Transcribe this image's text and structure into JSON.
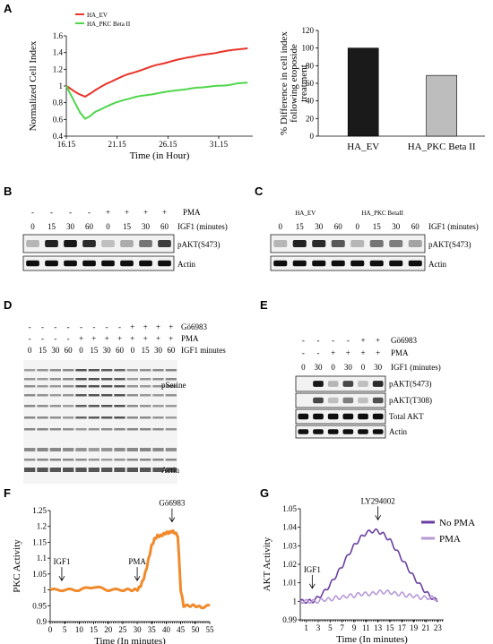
{
  "panel_letters": [
    "A",
    "B",
    "C",
    "D",
    "E",
    "F",
    "G"
  ],
  "chart_data": [
    {
      "type": "line",
      "panel": "A-left",
      "xlabel": "Time (in Hour)",
      "ylabel": "Normalized Cell Index",
      "xticks": [
        "16.15",
        "21.15",
        "26.15",
        "31.15"
      ],
      "yticks": [
        "0.4",
        "0.6",
        "0.8",
        "1",
        "1.2",
        "1.4",
        "1.6"
      ],
      "xlim": [
        16.15,
        34.5
      ],
      "ylim": [
        0.4,
        1.6
      ],
      "series": [
        {
          "name": "HA_EV",
          "color": "#e8342a",
          "x": [
            16.15,
            17,
            17.5,
            18,
            18.5,
            19,
            20,
            21,
            22,
            23,
            24,
            25,
            26,
            27,
            28,
            29,
            30,
            31,
            32,
            33,
            34
          ],
          "y": [
            1.0,
            0.93,
            0.9,
            0.87,
            0.91,
            0.95,
            1.02,
            1.08,
            1.13,
            1.17,
            1.21,
            1.25,
            1.28,
            1.31,
            1.34,
            1.36,
            1.38,
            1.4,
            1.42,
            1.44,
            1.45
          ]
        },
        {
          "name": "HA_PKC Beta II",
          "color": "#4fd64a",
          "x": [
            16.15,
            17,
            17.5,
            18,
            18.5,
            19,
            20,
            21,
            22,
            23,
            24,
            25,
            26,
            27,
            28,
            29,
            30,
            31,
            32,
            33,
            34
          ],
          "y": [
            1.0,
            0.8,
            0.68,
            0.61,
            0.64,
            0.69,
            0.75,
            0.8,
            0.84,
            0.87,
            0.89,
            0.91,
            0.93,
            0.95,
            0.96,
            0.98,
            0.99,
            1.0,
            1.01,
            1.03,
            1.04
          ]
        }
      ]
    },
    {
      "type": "bar",
      "panel": "A-right",
      "ylabel": "% Difference in cell index following etoposide treatment",
      "ylabel_lines": [
        "% Difference in cell index",
        "following etoposide",
        "treatment"
      ],
      "categories": [
        "HA_EV",
        "HA_PKC Beta II"
      ],
      "values": [
        100,
        69
      ],
      "colors": [
        "#1a1a1a",
        "#bdbdbd"
      ],
      "yticks": [
        "0",
        "20",
        "40",
        "60",
        "80",
        "100",
        "120"
      ],
      "ylim": [
        0,
        120
      ]
    },
    {
      "type": "line",
      "panel": "F",
      "xlabel": "Time (In minutes)",
      "ylabel": "PKC Activity",
      "xticks": [
        "0",
        "5",
        "10",
        "15",
        "20",
        "25",
        "30",
        "35",
        "40",
        "45",
        "50",
        "55"
      ],
      "yticks": [
        "0.9",
        "0.95",
        "1",
        "1.05",
        "1.1",
        "1.15",
        "1.2",
        "1.25"
      ],
      "xlim": [
        0,
        55
      ],
      "ylim": [
        0.9,
        1.25
      ],
      "series": [
        {
          "color": "#f08a2c",
          "x": [
            0,
            5,
            10,
            15,
            20,
            25,
            28,
            30,
            31,
            32,
            33,
            34,
            35,
            36,
            37,
            38,
            39,
            40,
            41,
            42,
            43,
            44,
            45,
            46,
            48,
            50,
            52,
            55
          ],
          "y": [
            1.0,
            1.0,
            1.0,
            1.01,
            1.0,
            1.0,
            1.0,
            1.0,
            1.01,
            1.03,
            1.06,
            1.1,
            1.14,
            1.16,
            1.17,
            1.17,
            1.175,
            1.18,
            1.18,
            1.185,
            1.18,
            1.17,
            1.0,
            0.95,
            0.95,
            0.95,
            0.945,
            0.95
          ]
        }
      ],
      "annotations": [
        {
          "text": "IGF1",
          "x": 4,
          "y": 1.035
        },
        {
          "text": "PMA",
          "x": 30,
          "y": 1.035
        },
        {
          "text": "Gö6983",
          "x": 42,
          "y": 1.22
        }
      ]
    },
    {
      "type": "line",
      "panel": "G",
      "xlabel": "Time (In minutes)",
      "ylabel": "AKT Activity",
      "xticks": [
        "1",
        "3",
        "5",
        "7",
        "9",
        "11",
        "13",
        "15",
        "17",
        "19",
        "21",
        "23"
      ],
      "yticks": [
        "0.99",
        "1",
        "1.01",
        "1.02",
        "1.03",
        "1.04",
        "1.05"
      ],
      "xlim": [
        0,
        24
      ],
      "ylim": [
        0.99,
        1.05
      ],
      "series": [
        {
          "name": "No PMA",
          "color": "#6b3fa0",
          "x": [
            0,
            1,
            2,
            3,
            4,
            5,
            6,
            7,
            8,
            9,
            10,
            11,
            12,
            13,
            14,
            15,
            16,
            17,
            18,
            19,
            20,
            21,
            22,
            23
          ],
          "y": [
            1.0,
            1.0,
            1.0,
            1.002,
            1.005,
            1.009,
            1.014,
            1.019,
            1.025,
            1.03,
            1.034,
            1.037,
            1.038,
            1.038,
            1.036,
            1.033,
            1.028,
            1.023,
            1.018,
            1.013,
            1.009,
            1.005,
            1.002,
            1.0
          ]
        },
        {
          "name": "PMA",
          "color": "#b79ad6",
          "x": [
            0,
            1,
            2,
            3,
            4,
            5,
            6,
            7,
            8,
            9,
            10,
            11,
            12,
            13,
            14,
            15,
            16,
            17,
            18,
            19,
            20,
            21,
            22,
            23
          ],
          "y": [
            1.0,
            1.0,
            1.0,
            1.0,
            1.001,
            1.001,
            1.002,
            1.002,
            1.003,
            1.003,
            1.004,
            1.004,
            1.004,
            1.005,
            1.005,
            1.005,
            1.004,
            1.004,
            1.003,
            1.003,
            1.002,
            1.002,
            1.002,
            1.001
          ]
        }
      ],
      "annotations": [
        {
          "text": "IGF1",
          "x": 2,
          "y": 1.008
        },
        {
          "text": "LY294002",
          "x": 13,
          "y": 1.045
        }
      ]
    }
  ],
  "blots": {
    "B": {
      "pma_label": "PMA",
      "pma_row": [
        "-",
        "-",
        "-",
        "-",
        "+",
        "+",
        "+",
        "+"
      ],
      "igf1_label": "IGF1 (minutes)",
      "igf1_row": [
        "0",
        "15",
        "30",
        "60",
        "0",
        "15",
        "30",
        "60"
      ],
      "bands": [
        "pAKT(S473)",
        "Actin"
      ],
      "band_levels": [
        [
          0.1,
          0.9,
          0.95,
          0.85,
          0.05,
          0.15,
          0.45,
          0.75
        ],
        [
          1,
          1,
          1,
          1,
          1,
          1,
          1,
          1
        ]
      ]
    },
    "C": {
      "groups": [
        "HA_EV",
        "HA_PKC BetaII"
      ],
      "igf1_label": "IGF1 (minutes)",
      "igf1_row": [
        "0",
        "15",
        "30",
        "60",
        "0",
        "15",
        "30",
        "60"
      ],
      "bands": [
        "pAKT(S473)",
        "Actin"
      ],
      "band_levels": [
        [
          0.1,
          0.9,
          0.85,
          0.6,
          0.1,
          0.45,
          0.4,
          0.2
        ],
        [
          1,
          1,
          1,
          1,
          1,
          1,
          1,
          1
        ]
      ]
    },
    "D": {
      "go_label": "Gö6983",
      "go_row": [
        "-",
        "-",
        "-",
        "-",
        "-",
        "-",
        "-",
        "-",
        "+",
        "+",
        "+",
        "+"
      ],
      "pma_label": "PMA",
      "pma_row": [
        "-",
        "-",
        "-",
        "-",
        "+",
        "+",
        "+",
        "+",
        "+",
        "+",
        "+",
        "+"
      ],
      "igf1_label": "IGF1 minutes",
      "igf1_row": [
        "0",
        "15",
        "30",
        "60",
        "0",
        "15",
        "30",
        "60",
        "0",
        "15",
        "30",
        "60"
      ],
      "bands": [
        "pSerine",
        "Actin"
      ]
    },
    "E": {
      "go_label": "Gö6983",
      "go_row": [
        "-",
        "-",
        "-",
        "-",
        "+",
        "+"
      ],
      "pma_label": "PMA",
      "pma_row": [
        "-",
        "-",
        "+",
        "+",
        "+",
        "+"
      ],
      "igf1_label": "IGF1 (minutes)",
      "igf1_row": [
        "0",
        "30",
        "0",
        "30",
        "0",
        "30"
      ],
      "bands": [
        "pAKT(S473)",
        "pAKT(T308)",
        "Total AKT",
        "Actin"
      ],
      "band_levels": [
        [
          0,
          0.95,
          0.1,
          0.7,
          0.05,
          0.85
        ],
        [
          0,
          0.7,
          0.05,
          0.4,
          0.05,
          0.65
        ],
        [
          1,
          1,
          1,
          1,
          1,
          1
        ],
        [
          1,
          1,
          1,
          1,
          1,
          1
        ]
      ]
    }
  }
}
